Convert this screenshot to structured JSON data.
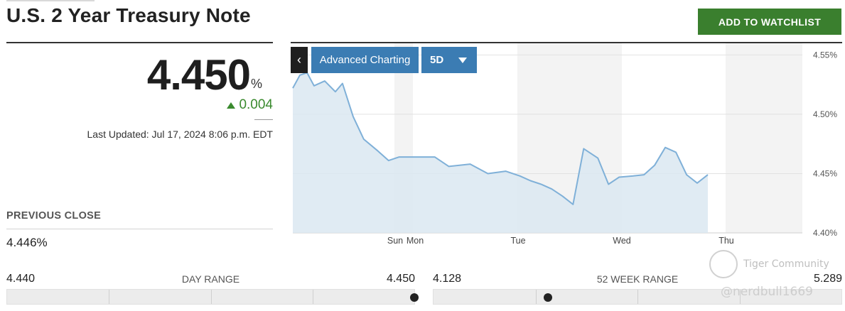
{
  "header": {
    "title": "U.S. 2 Year Treasury Note",
    "watchlist_button": "ADD TO WATCHLIST"
  },
  "quote": {
    "value": "4.450",
    "unit": "%",
    "change": "0.004",
    "change_direction": "up",
    "last_updated": "Last Updated: Jul 17, 2024 8:06 p.m. EDT"
  },
  "previous_close": {
    "label": "PREVIOUS CLOSE",
    "value": "4.446%"
  },
  "day_range": {
    "label": "DAY RANGE",
    "low": "4.440",
    "high": "4.450",
    "position": 1.0
  },
  "week52_range": {
    "label": "52 WEEK RANGE",
    "low": "4.128",
    "high": "5.289",
    "position": 0.28
  },
  "chart_controls": {
    "back_icon": "chevron-left-icon",
    "advanced_label": "Advanced Charting",
    "period_label": "5D",
    "period_caret": "caret-down-icon"
  },
  "watermark": {
    "name": "Tiger Community",
    "handle": "@nerdbull1669"
  },
  "colors": {
    "accent_green": "#3a7f2e",
    "change_green": "#3a8a2e",
    "chart_blue": "#3b7cb3",
    "line": "#7fb0d8",
    "area": "#dbe8f1"
  },
  "chart_data": {
    "type": "area",
    "title": "",
    "xlabel": "",
    "ylabel": "",
    "x_tick_labels": [
      "Sun",
      "Mon",
      "Tue",
      "Wed",
      "Thu"
    ],
    "y_tick_labels": [
      "4.55%",
      "4.50%",
      "4.45%",
      "4.40%"
    ],
    "y_ticks": [
      4.55,
      4.5,
      4.45,
      4.4
    ],
    "ylim": [
      4.4,
      4.555
    ],
    "xlim": [
      0,
      5.85
    ],
    "grid": true,
    "series": [
      {
        "x": [
          0.0,
          0.1,
          0.2,
          0.3,
          0.45,
          0.6,
          0.7,
          0.85,
          1.0,
          1.2,
          1.35,
          1.5,
          1.65,
          1.85,
          2.0,
          2.2,
          2.5,
          2.75,
          3.0,
          3.2,
          3.35,
          3.5,
          3.65,
          3.8,
          3.95,
          4.1,
          4.3,
          4.45,
          4.6,
          4.8,
          4.95,
          5.1,
          5.25,
          5.4,
          5.55,
          5.7,
          5.85
        ],
        "y": [
          4.522,
          4.533,
          4.535,
          4.524,
          4.528,
          4.519,
          4.526,
          4.498,
          4.479,
          4.469,
          4.461,
          4.464,
          4.464,
          4.464,
          4.464,
          4.456,
          4.458,
          4.45,
          4.452,
          4.448,
          4.444,
          4.441,
          4.437,
          4.431,
          4.424,
          4.471,
          4.463,
          4.441,
          4.447,
          4.448,
          4.449,
          4.457,
          4.472,
          4.468,
          4.449,
          4.442,
          4.449
        ]
      }
    ]
  }
}
